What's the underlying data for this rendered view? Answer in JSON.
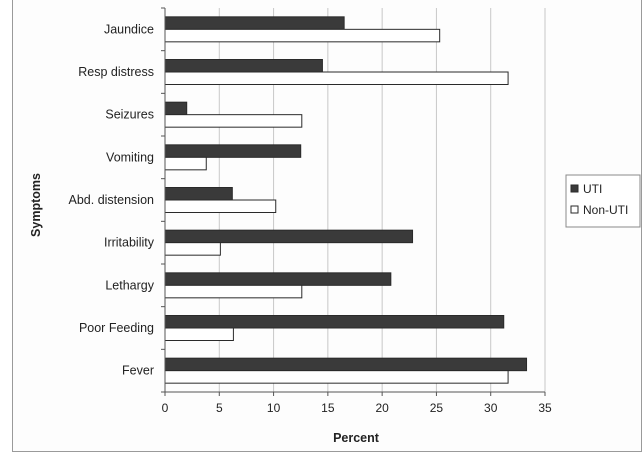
{
  "chart_data": {
    "type": "bar",
    "orientation": "horizontal",
    "title": "",
    "xlabel": "Percent",
    "ylabel": "Symptoms",
    "xlim": [
      0,
      35
    ],
    "xticks": [
      "0",
      "5",
      "10",
      "15",
      "20",
      "25",
      "30",
      "35"
    ],
    "categories": [
      "Jaundice",
      "Resp distress",
      "Seizures",
      "Vomiting",
      "Abd. distension",
      "Irritability",
      "Lethargy",
      "Poor Feeding",
      "Fever"
    ],
    "series": [
      {
        "name": "UTI",
        "color": "#3a3a3a",
        "values": [
          16.5,
          14.5,
          2.0,
          12.5,
          6.2,
          22.8,
          20.8,
          31.2,
          33.3
        ]
      },
      {
        "name": "Non-UTI",
        "color": "#ffffff",
        "values": [
          25.3,
          31.6,
          12.6,
          3.8,
          10.2,
          5.1,
          12.6,
          6.3,
          31.6
        ]
      }
    ],
    "grid": true,
    "legend_position": "right"
  }
}
